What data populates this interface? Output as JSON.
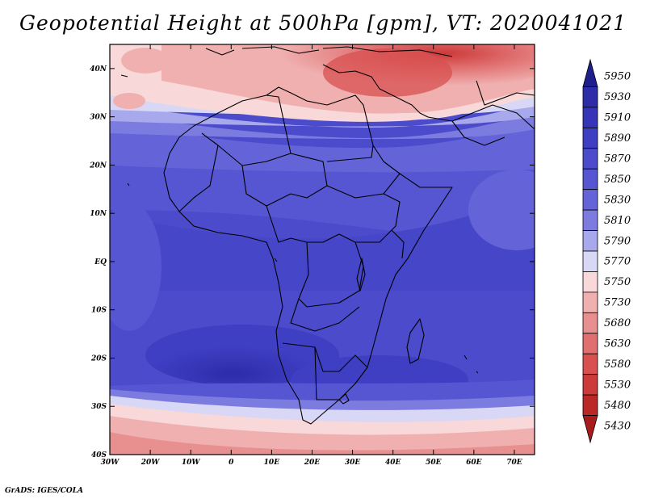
{
  "title": "Geopotential Height at 500hPa [gpm], VT: 2020041021",
  "credit": "GrADS: IGES/COLA",
  "lat_labels": [
    "40N",
    "30N",
    "20N",
    "10N",
    "EQ",
    "10S",
    "20S",
    "30S",
    "40S"
  ],
  "lon_labels": [
    "30W",
    "20W",
    "10W",
    "0",
    "10E",
    "20E",
    "30E",
    "40E",
    "50E",
    "60E",
    "70E"
  ],
  "lon_ticks": [
    -30,
    -20,
    -10,
    0,
    10,
    20,
    30,
    40,
    50,
    60,
    70
  ],
  "lat_ticks": [
    40,
    30,
    20,
    10,
    0,
    -10,
    -20,
    -30,
    -40
  ],
  "map_extent": {
    "lon_min": -30,
    "lon_max": 75,
    "lat_min": -40,
    "lat_max": 45
  },
  "colorbar": {
    "values": [
      "5950",
      "5930",
      "5910",
      "5890",
      "5870",
      "5850",
      "5830",
      "5810",
      "5790",
      "5770",
      "5750",
      "5730",
      "5680",
      "5630",
      "5580",
      "5530",
      "5480",
      "5430"
    ],
    "colors": [
      "#1f1f8c",
      "#2d2daa",
      "#3535b8",
      "#3f3fc4",
      "#4b4bcc",
      "#5656d2",
      "#6464d8",
      "#7c7ce0",
      "#a8a8ec",
      "#d8d8f6",
      "#f8d8d8",
      "#f0b0b0",
      "#e89090",
      "#e07070",
      "#d85050",
      "#cc3a3a",
      "#bb2828",
      "#a81c1c"
    ]
  }
}
